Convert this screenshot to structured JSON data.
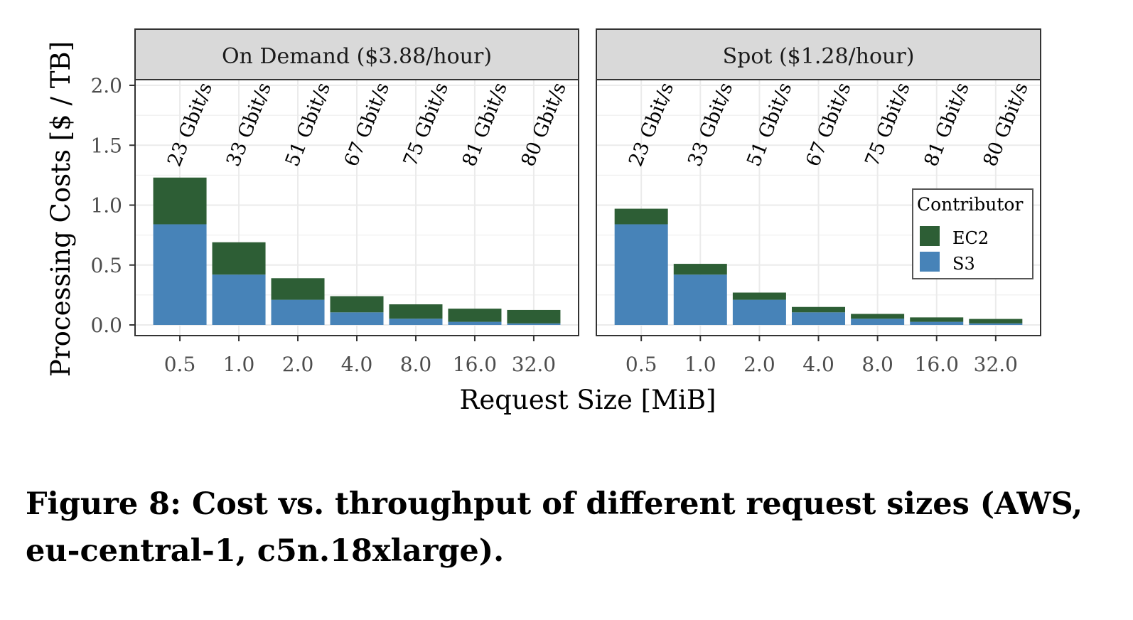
{
  "caption": "Figure 8: Cost vs. throughput of different request sizes (AWS, eu-central-1, c5n.18xlarge).",
  "colors": {
    "EC2": "#2d5e35",
    "S3": "#4783b8",
    "strip": "#d9d9d9",
    "grid": "#ebebeb",
    "border": "#333333"
  },
  "chart_data": {
    "type": "bar",
    "stacked": true,
    "xlabel": "Request Size [MiB]",
    "ylabel": "Processing Costs [$ / TB]",
    "ylim": [
      0,
      2.0
    ],
    "yticks": [
      "0.0",
      "0.5",
      "1.0",
      "1.5",
      "2.0"
    ],
    "grid": true,
    "legend": {
      "title": "Contributor",
      "placement": "right, inside Spot panel",
      "entries": [
        "EC2",
        "S3"
      ]
    },
    "categories": [
      "0.5",
      "1.0",
      "2.0",
      "4.0",
      "8.0",
      "16.0",
      "32.0"
    ],
    "panels": [
      {
        "title": "On Demand ($3.88/hour)",
        "throughput_labels": [
          "23 Gbit/s",
          "33 Gbit/s",
          "51 Gbit/s",
          "67 Gbit/s",
          "75 Gbit/s",
          "81 Gbit/s",
          "80 Gbit/s"
        ],
        "series": [
          {
            "name": "S3",
            "values": [
              0.84,
              0.42,
              0.21,
              0.105,
              0.052,
              0.026,
              0.013
            ]
          },
          {
            "name": "EC2",
            "values": [
              0.39,
              0.27,
              0.18,
              0.135,
              0.12,
              0.11,
              0.112
            ]
          }
        ]
      },
      {
        "title": "Spot ($1.28/hour)",
        "throughput_labels": [
          "23 Gbit/s",
          "33 Gbit/s",
          "51 Gbit/s",
          "67 Gbit/s",
          "75 Gbit/s",
          "81 Gbit/s",
          "80 Gbit/s"
        ],
        "series": [
          {
            "name": "S3",
            "values": [
              0.84,
              0.42,
              0.21,
              0.105,
              0.052,
              0.026,
              0.013
            ]
          },
          {
            "name": "EC2",
            "values": [
              0.13,
              0.09,
              0.06,
              0.045,
              0.04,
              0.037,
              0.037
            ]
          }
        ]
      }
    ]
  }
}
